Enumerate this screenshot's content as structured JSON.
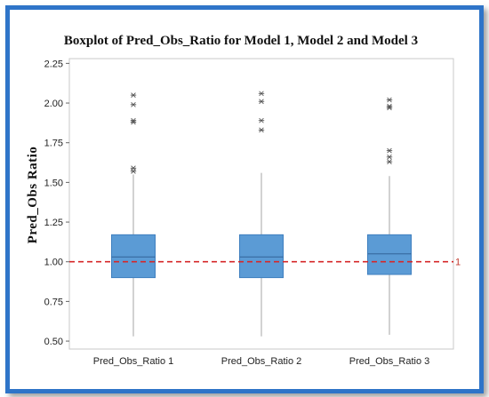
{
  "colors": {
    "frame": "#2e74c8",
    "box_fill": "#5b9bd5",
    "box_stroke": "#3f7fbf",
    "median": "#3a6ea5",
    "whisker": "#b3b3b3",
    "outlier": "#555555",
    "reference_line": "#d62728",
    "plot_border": "#c8c8c8"
  },
  "chart_data": {
    "type": "boxplot",
    "title": "Boxplot of Pred_Obs_Ratio for Model 1, Model 2 and Model 3",
    "xlabel": "",
    "ylabel": "Pred_Obs Ratio",
    "ylim": [
      0.45,
      2.28
    ],
    "yticks": [
      0.5,
      0.75,
      1.0,
      1.25,
      1.5,
      1.75,
      2.0,
      2.25
    ],
    "ytick_labels": [
      "0.50",
      "0.75",
      "1.00",
      "1.25",
      "1.50",
      "1.75",
      "2.00",
      "2.25"
    ],
    "grid": false,
    "categories": [
      "Pred_Obs_Ratio 1",
      "Pred_Obs_Ratio 2",
      "Pred_Obs_Ratio 3"
    ],
    "boxes": [
      {
        "whisker_low": 0.53,
        "q1": 0.9,
        "median": 1.03,
        "q3": 1.17,
        "whisker_high": 1.55,
        "outliers": [
          1.57,
          1.59,
          1.88,
          1.89,
          1.99,
          2.05
        ]
      },
      {
        "whisker_low": 0.53,
        "q1": 0.9,
        "median": 1.03,
        "q3": 1.17,
        "whisker_high": 1.56,
        "outliers": [
          1.83,
          1.89,
          2.01,
          2.06
        ]
      },
      {
        "whisker_low": 0.54,
        "q1": 0.92,
        "median": 1.05,
        "q3": 1.17,
        "whisker_high": 1.54,
        "outliers": [
          1.63,
          1.66,
          1.7,
          1.97,
          1.98,
          2.02
        ]
      }
    ],
    "reference_line": {
      "value": 1.0,
      "label": "1",
      "style": "dashed"
    }
  }
}
